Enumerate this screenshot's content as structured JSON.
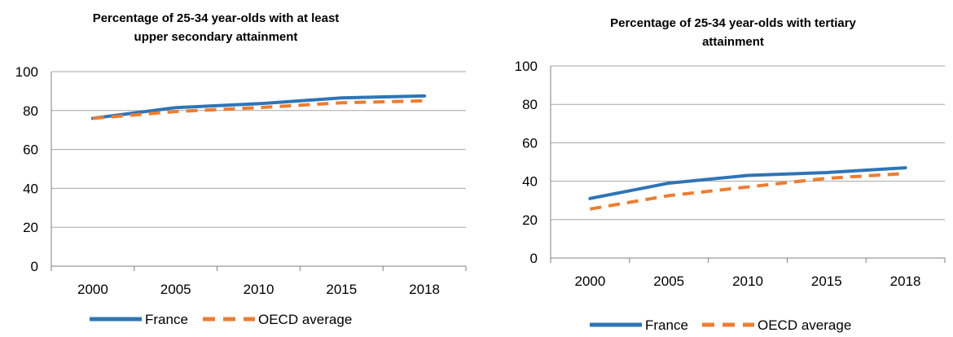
{
  "chart_data": [
    {
      "type": "line",
      "title_lines": [
        "Percentage of 25-34 year-olds with at least",
        "upper secondary attainment"
      ],
      "categories": [
        "2000",
        "2005",
        "2010",
        "2015",
        "2018"
      ],
      "ylim": [
        0,
        100
      ],
      "yticks": [
        "0",
        "20",
        "40",
        "60",
        "80",
        "100"
      ],
      "grid": true,
      "legend_position": "bottom",
      "series": [
        {
          "name": "France",
          "values": [
            76,
            81.5,
            83.5,
            86.5,
            87.5
          ],
          "color": "#2E75B6",
          "style": "solid"
        },
        {
          "name": "OECD average",
          "values": [
            76,
            79.5,
            81.5,
            84,
            85
          ],
          "color": "#ED7D31",
          "style": "dashed"
        }
      ]
    },
    {
      "type": "line",
      "title_lines": [
        "Percentage of 25-34 year-olds with tertiary",
        "attainment"
      ],
      "categories": [
        "2000",
        "2005",
        "2010",
        "2015",
        "2018"
      ],
      "ylim": [
        0,
        100
      ],
      "yticks": [
        "0",
        "20",
        "40",
        "60",
        "80",
        "100"
      ],
      "grid": true,
      "legend_position": "bottom",
      "series": [
        {
          "name": "France",
          "values": [
            31,
            39,
            43,
            44.5,
            47
          ],
          "color": "#2E75B6",
          "style": "solid"
        },
        {
          "name": "OECD average",
          "values": [
            25.5,
            32.5,
            37,
            41.5,
            44
          ],
          "color": "#ED7D31",
          "style": "dashed"
        }
      ]
    }
  ]
}
